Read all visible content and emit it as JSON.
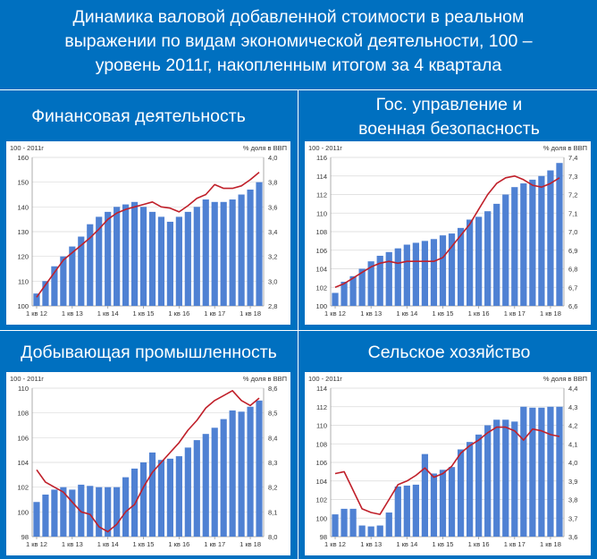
{
  "page": {
    "title_lines": [
      "Динамика валовой добавленной стоимости в реальном",
      "выражении по видам экономической деятельности, 100 –",
      "уровень 2011г, накопленным итогом за 4 квартала"
    ]
  },
  "colors": {
    "background": "#0070c0",
    "bar": "#4f81d3",
    "line": "#c0202a",
    "grid": "#d9d9d9"
  },
  "chart_data": [
    {
      "type": "bar",
      "title": "Финансовая деятельность",
      "left_axis_label": "100 - 2011г",
      "right_axis_label": "% доля в ВВП",
      "x_tick_labels": [
        "1 кв 12",
        "1 кв 13",
        "1 кв 14",
        "1 кв 15",
        "1 кв 16",
        "1 кв 17",
        "1 кв 18"
      ],
      "ylim": [
        100,
        160
      ],
      "y_ticks": [
        "100",
        "110",
        "120",
        "130",
        "140",
        "150",
        "160"
      ],
      "y2lim": [
        2.8,
        4.0
      ],
      "y2_ticks": [
        "2,8",
        "3,0",
        "3,2",
        "3,4",
        "3,6",
        "3,8",
        "4,0"
      ],
      "bars": [
        105,
        110,
        116,
        120,
        124,
        128,
        133,
        136,
        138,
        140,
        141,
        142,
        140,
        138,
        136,
        134,
        136,
        138,
        140,
        143,
        142,
        142,
        143,
        145,
        147,
        150
      ],
      "line": [
        2.87,
        2.97,
        3.07,
        3.17,
        3.23,
        3.29,
        3.35,
        3.42,
        3.5,
        3.55,
        3.58,
        3.6,
        3.62,
        3.64,
        3.6,
        3.59,
        3.56,
        3.61,
        3.67,
        3.7,
        3.78,
        3.75,
        3.75,
        3.77,
        3.82,
        3.88
      ],
      "grid": true
    },
    {
      "type": "bar",
      "title": "Гос. управление и военная безопасность",
      "left_axis_label": "100 - 2011г",
      "right_axis_label": "% доля в ВВП",
      "x_tick_labels": [
        "1 кв 12",
        "1 кв 13",
        "1 кв 14",
        "1 кв 15",
        "1 кв 16",
        "1 кв 17",
        "1 кв 18"
      ],
      "ylim": [
        100,
        116
      ],
      "y_ticks": [
        "100",
        "102",
        "104",
        "106",
        "108",
        "110",
        "112",
        "114",
        "116"
      ],
      "y2lim": [
        6.6,
        7.4
      ],
      "y2_ticks": [
        "6,6",
        "6,7",
        "6,8",
        "6,9",
        "7,0",
        "7,1",
        "7,2",
        "7,3",
        "7,4"
      ],
      "bars": [
        101.4,
        102.6,
        103.2,
        104,
        104.8,
        105.4,
        105.8,
        106.2,
        106.6,
        106.8,
        107,
        107.2,
        107.6,
        107.8,
        108.4,
        109.3,
        109.6,
        110.2,
        111,
        112,
        112.8,
        113.2,
        113.6,
        114,
        114.6,
        115.4
      ],
      "line": [
        6.7,
        6.72,
        6.75,
        6.78,
        6.81,
        6.83,
        6.84,
        6.83,
        6.84,
        6.84,
        6.84,
        6.84,
        6.86,
        6.92,
        6.98,
        7.04,
        7.12,
        7.2,
        7.26,
        7.29,
        7.3,
        7.28,
        7.25,
        7.24,
        7.26,
        7.29
      ],
      "grid": true
    },
    {
      "type": "bar",
      "title": "Добывающая промышленность",
      "left_axis_label": "100 - 2011г",
      "right_axis_label": "% доля в ВВП",
      "x_tick_labels": [
        "1 кв 12",
        "1 кв 13",
        "1 кв 14",
        "1 кв 15",
        "1 кв 16",
        "1 кв 17",
        "1 кв 18"
      ],
      "ylim": [
        98,
        110
      ],
      "y_ticks": [
        "98",
        "100",
        "102",
        "104",
        "106",
        "108",
        "110"
      ],
      "y2lim": [
        8.0,
        8.6
      ],
      "y2_ticks": [
        "8,0",
        "8,1",
        "8,2",
        "8,3",
        "8,4",
        "8,5",
        "8,6"
      ],
      "bars": [
        100.8,
        101.4,
        101.8,
        102,
        101.8,
        102.2,
        102.1,
        102,
        102,
        102,
        102.8,
        103.5,
        104,
        104.8,
        104.2,
        104.3,
        104.5,
        105.2,
        105.8,
        106.3,
        106.8,
        107.5,
        108.2,
        108.1,
        108.5,
        109
      ],
      "line": [
        8.27,
        8.22,
        8.2,
        8.18,
        8.14,
        8.1,
        8.09,
        8.04,
        8.02,
        8.05,
        8.1,
        8.13,
        8.2,
        8.26,
        8.3,
        8.34,
        8.38,
        8.43,
        8.47,
        8.52,
        8.55,
        8.57,
        8.59,
        8.55,
        8.53,
        8.56
      ],
      "grid": true
    },
    {
      "type": "bar",
      "title": "Сельское хозяйство",
      "left_axis_label": "100 - 2011г",
      "right_axis_label": "% доля в ВВП",
      "x_tick_labels": [
        "1 кв 12",
        "1 кв 13",
        "1 кв 14",
        "1 кв 15",
        "1 кв 16",
        "1 кв 17",
        "1 кв 18"
      ],
      "ylim": [
        98,
        114
      ],
      "y_ticks": [
        "98",
        "100",
        "102",
        "104",
        "106",
        "108",
        "110",
        "112",
        "114"
      ],
      "y2lim": [
        3.6,
        4.4
      ],
      "y2_ticks": [
        "3,6",
        "3,7",
        "3,8",
        "3,9",
        "4,0",
        "4,1",
        "4,2",
        "4,3",
        "4,4"
      ],
      "bars": [
        100.4,
        101,
        101,
        99.2,
        99.1,
        99.2,
        100.6,
        103.4,
        103.5,
        103.6,
        106.9,
        104.8,
        105.2,
        105.5,
        107.4,
        108.2,
        109,
        110,
        110.6,
        110.6,
        110.4,
        112,
        111.9,
        111.9,
        112,
        112
      ],
      "line": [
        3.94,
        3.95,
        3.85,
        3.75,
        3.73,
        3.72,
        3.8,
        3.88,
        3.9,
        3.93,
        3.97,
        3.92,
        3.94,
        3.98,
        4.05,
        4.09,
        4.12,
        4.16,
        4.19,
        4.19,
        4.17,
        4.12,
        4.18,
        4.17,
        4.15,
        4.14
      ],
      "grid": true
    }
  ]
}
